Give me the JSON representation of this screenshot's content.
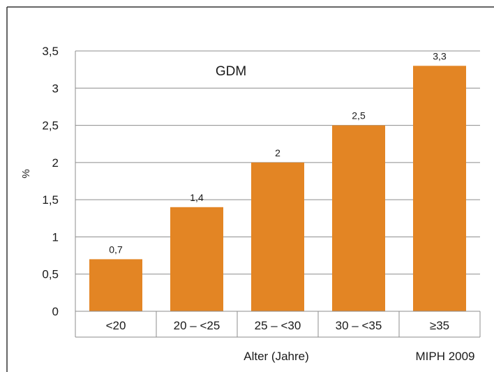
{
  "chart_data": {
    "type": "bar",
    "title": "GDM",
    "ylabel": "%",
    "xlabel": "Alter (Jahre)",
    "source": "MIPH 2009",
    "categories": [
      "<20",
      "20 – <25",
      "25 – <30",
      "30 – <35",
      "≥35"
    ],
    "values": [
      0.7,
      1.4,
      2,
      2.5,
      3.3
    ],
    "value_labels": [
      "0,7",
      "1,4",
      "2",
      "2,5",
      "3,3"
    ],
    "ylim": [
      0,
      3.5
    ],
    "yticks": [
      0,
      0.5,
      1,
      1.5,
      2,
      2.5,
      3,
      3.5
    ],
    "ytick_labels": [
      "0",
      "0,5",
      "1",
      "1,5",
      "2",
      "2,5",
      "3",
      "3,5"
    ],
    "grid": true,
    "colors": {
      "bar": "#e38524",
      "grid": "#8c8c8c",
      "frame": "#333333"
    }
  }
}
